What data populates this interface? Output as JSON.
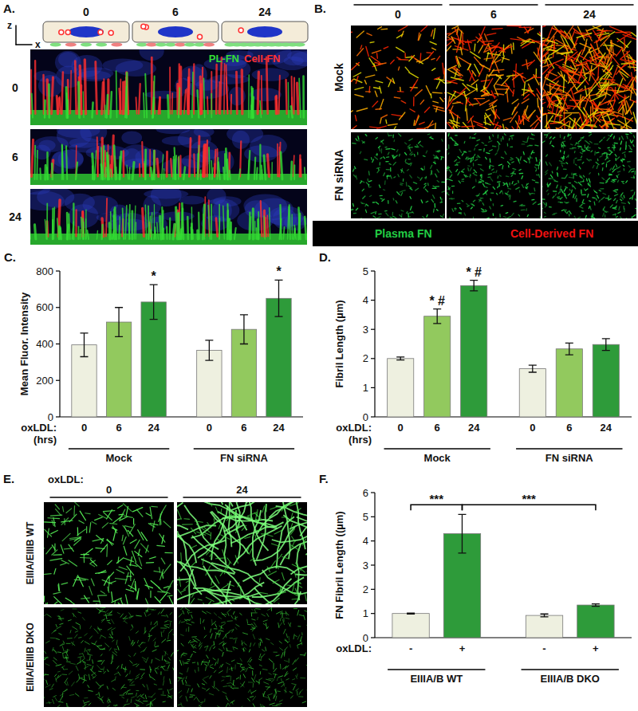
{
  "figure": {
    "panel_a": {
      "panel": "A.",
      "axis_letters": [
        "z",
        "x"
      ],
      "timepoints": [
        "0",
        "6",
        "24"
      ],
      "rows": [
        "0",
        "6",
        "24"
      ],
      "channels": [
        {
          "name": "PL-FN",
          "color": "#33dd33"
        },
        {
          "name": "Cell-FN",
          "color": "#ff3030"
        }
      ]
    },
    "panel_b": {
      "panel": "B.",
      "columns": [
        "0",
        "6",
        "24"
      ],
      "rows": [
        "Mock",
        "FN siRNA"
      ],
      "channels": [
        {
          "name": "Plasma FN",
          "color": "#22cc44"
        },
        {
          "name": "Cell-Derived FN",
          "color": "#ee1111"
        }
      ]
    },
    "panel_e": {
      "panel": "E.",
      "header": "oxLDL:",
      "columns": [
        "0",
        "24"
      ],
      "rows": [
        "EIIIA/EIIIB WT",
        "EIIIA/EIIIB DKO"
      ]
    }
  },
  "chart_data": [
    {
      "type": "bar",
      "panel": "C.",
      "ylabel": "Mean Fluor. Intensity",
      "xlabel_lines": [
        "oxLDL:",
        "(hrs)"
      ],
      "categories": [
        "0",
        "6",
        "24",
        "0",
        "6",
        "24"
      ],
      "groups": [
        "Mock",
        "FN siRNA"
      ],
      "values": [
        395,
        520,
        630,
        365,
        480,
        650
      ],
      "errors": [
        65,
        80,
        95,
        55,
        80,
        100
      ],
      "colors": [
        "#eef0e0",
        "#92c95e",
        "#2e9b3a",
        "#eef0e0",
        "#92c95e",
        "#2e9b3a"
      ],
      "ylim": [
        0,
        800
      ],
      "yticks": [
        0,
        200,
        400,
        600,
        800
      ],
      "annotations": [
        {
          "index": 2,
          "text": "*"
        },
        {
          "index": 5,
          "text": "*"
        }
      ]
    },
    {
      "type": "bar",
      "panel": "D.",
      "ylabel": "Fibril Length (µm)",
      "xlabel_lines": [
        "oxLDL:",
        "(hrs)"
      ],
      "categories": [
        "0",
        "6",
        "24",
        "0",
        "6",
        "24"
      ],
      "groups": [
        "Mock",
        "FN siRNA"
      ],
      "values": [
        2.0,
        3.45,
        4.5,
        1.65,
        2.33,
        2.48
      ],
      "errors": [
        0.05,
        0.25,
        0.18,
        0.12,
        0.2,
        0.2
      ],
      "colors": [
        "#eef0e0",
        "#92c95e",
        "#2e9b3a",
        "#eef0e0",
        "#92c95e",
        "#2e9b3a"
      ],
      "ylim": [
        0,
        5
      ],
      "yticks": [
        0,
        1,
        2,
        3,
        4,
        5
      ],
      "annotations": [
        {
          "index": 1,
          "text": "* #"
        },
        {
          "index": 2,
          "text": "* #"
        }
      ]
    },
    {
      "type": "bar",
      "panel": "F.",
      "ylabel": "FN Fibril Length ((µm)",
      "xlabel_lines": [
        "oxLDL:"
      ],
      "categories": [
        "-",
        "+",
        "-",
        "+"
      ],
      "groups": [
        "EIIIA/B WT",
        "EIIIA/B DKO"
      ],
      "values": [
        1.0,
        4.3,
        0.92,
        1.35
      ],
      "errors": [
        0.02,
        0.8,
        0.06,
        0.05
      ],
      "colors": [
        "#eef0e0",
        "#2e9b3a",
        "#eef0e0",
        "#2e9b3a"
      ],
      "ylim": [
        0,
        6
      ],
      "yticks": [
        0,
        1,
        2,
        3,
        4,
        5,
        6
      ],
      "brackets": [
        {
          "from": 0,
          "to": 1,
          "text": "***"
        },
        {
          "from": 1,
          "to": 3,
          "text": "***"
        }
      ]
    }
  ]
}
